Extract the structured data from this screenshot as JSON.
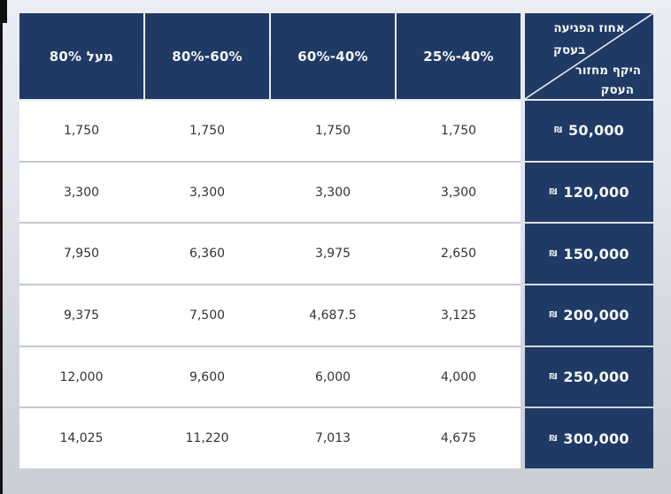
{
  "colors": {
    "navy": "#1f3a64",
    "header_text": "#f5f7fa",
    "page_bg_top": "#eaeef4",
    "page_bg_bottom": "#c9cdd6",
    "row_separator": "#c6c9cf",
    "data_text": "#333333",
    "diagonal_line": "#e8ebf0"
  },
  "corner_display": {
    "line1": "אחוז הפגיעה",
    "line2": "בעסק",
    "line3": "היקף מחזור",
    "line4": "העסק"
  },
  "chart_data": {
    "type": "table",
    "corner_header": {
      "top_right_of_diagonal": "אחוז הפגיעה בעסק",
      "bottom_left_of_diagonal": "היקף מחזור העסק"
    },
    "column_headers": [
      "מעל 80%",
      "60%-80%",
      "40%-60%",
      "40%-25%"
    ],
    "currency": "₪",
    "row_headers": [
      "50,000",
      "120,000",
      "150,000",
      "200,000",
      "250,000",
      "300,000"
    ],
    "rows": [
      [
        "1,750",
        "1,750",
        "1,750",
        "1,750"
      ],
      [
        "3,300",
        "3,300",
        "3,300",
        "3,300"
      ],
      [
        "7,950",
        "6,360",
        "3,975",
        "2,650"
      ],
      [
        "9,375",
        "7,500",
        "4,687.5",
        "3,125"
      ],
      [
        "12,000",
        "9,600",
        "6,000",
        "4,000"
      ],
      [
        "14,025",
        "11,220",
        "7,013",
        "4,675"
      ]
    ],
    "layout": {
      "row_header_side": "right",
      "direction": "rtl",
      "grid": "horizontal separators only in data area",
      "corner_diagonal": "bottom-left to top-right"
    }
  }
}
